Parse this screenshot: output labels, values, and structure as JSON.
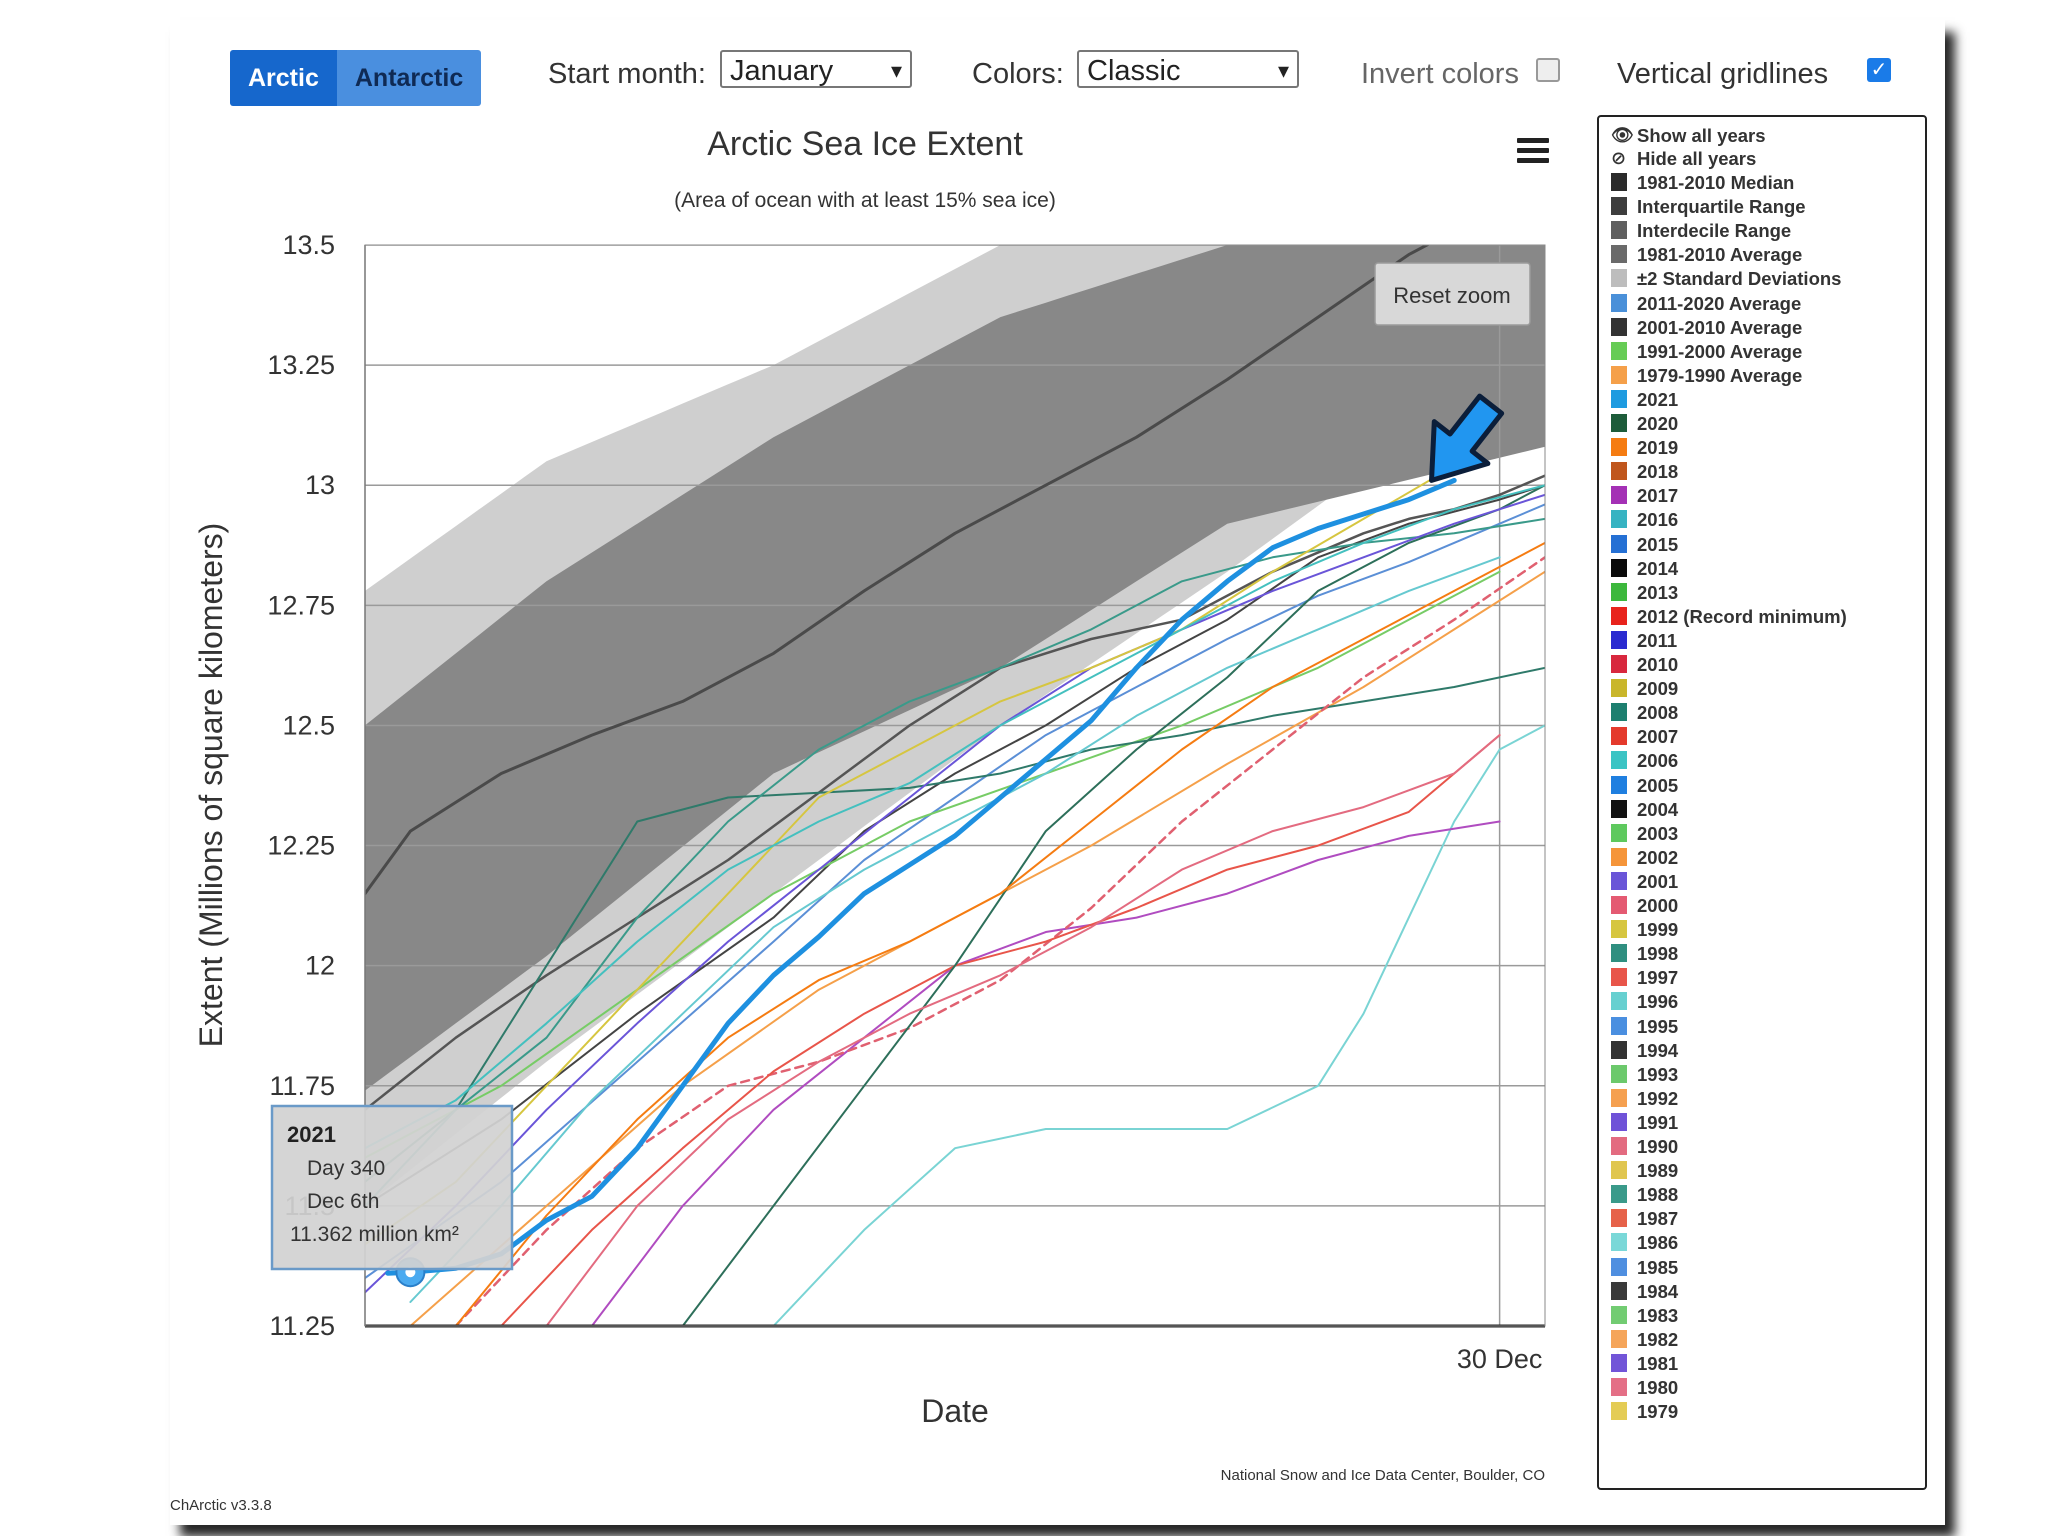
{
  "controls": {
    "region_buttons": [
      "Arctic",
      "Antarctic"
    ],
    "start_month_label": "Start month:",
    "start_month_value": "January",
    "colors_label": "Colors:",
    "colors_value": "Classic",
    "invert_label": "Invert colors",
    "invert_checked": false,
    "gridlines_label": "Vertical gridlines",
    "gridlines_checked": true
  },
  "footer": {
    "version": "ChArctic v3.3.8",
    "credit": "National Snow and Ice Data Center, Boulder, CO"
  },
  "reset_zoom": "Reset zoom",
  "tooltip": {
    "title": "2021",
    "line1": "Day 340",
    "line2": "Dec 6th",
    "line3": "11.362 million km²"
  },
  "legend": {
    "show_all": "Show all years",
    "hide_all": "Hide all years",
    "items": [
      {
        "label": "1981-2010 Median",
        "color": "#2b2b2b"
      },
      {
        "label": "Interquartile Range",
        "color": "#3d3d3d"
      },
      {
        "label": "Interdecile Range",
        "color": "#5f5f5f"
      },
      {
        "label": "1981-2010 Average",
        "color": "#6a6a6a"
      },
      {
        "label": "±2 Standard Deviations",
        "color": "#bdbdbd"
      },
      {
        "label": "2011-2020 Average",
        "color": "#4a90d9"
      },
      {
        "label": "2001-2010 Average",
        "color": "#333333"
      },
      {
        "label": "1991-2000 Average",
        "color": "#66cc55"
      },
      {
        "label": "1979-1990 Average",
        "color": "#f5a04a"
      },
      {
        "label": "2021",
        "color": "#1e9be0"
      },
      {
        "label": "2020",
        "color": "#1d5c3a"
      },
      {
        "label": "2019",
        "color": "#f57c12"
      },
      {
        "label": "2018",
        "color": "#c0561d"
      },
      {
        "label": "2017",
        "color": "#a431b5"
      },
      {
        "label": "2016",
        "color": "#36b3c2"
      },
      {
        "label": "2015",
        "color": "#2570d4"
      },
      {
        "label": "2014",
        "color": "#0a0a0a"
      },
      {
        "label": "2013",
        "color": "#3cb83c"
      },
      {
        "label": "2012 (Record minimum)",
        "color": "#e8231c"
      },
      {
        "label": "2011",
        "color": "#2a2ad0"
      },
      {
        "label": "2010",
        "color": "#d8283e"
      },
      {
        "label": "2009",
        "color": "#c9b62b"
      },
      {
        "label": "2008",
        "color": "#1d7f6f"
      },
      {
        "label": "2007",
        "color": "#e43a2c"
      },
      {
        "label": "2006",
        "color": "#3bc4c4"
      },
      {
        "label": "2005",
        "color": "#1f7fe0"
      },
      {
        "label": "2004",
        "color": "#111111"
      },
      {
        "label": "2003",
        "color": "#5ec95e"
      },
      {
        "label": "2002",
        "color": "#f5953a"
      },
      {
        "label": "2001",
        "color": "#6a55d8"
      },
      {
        "label": "2000",
        "color": "#e45a72"
      },
      {
        "label": "1999",
        "color": "#d6c640"
      },
      {
        "label": "1998",
        "color": "#2f8f80"
      },
      {
        "label": "1997",
        "color": "#e8554a"
      },
      {
        "label": "1996",
        "color": "#66d0d0"
      },
      {
        "label": "1995",
        "color": "#4a8fe0"
      },
      {
        "label": "1994",
        "color": "#333333"
      },
      {
        "label": "1993",
        "color": "#6cc96c"
      },
      {
        "label": "1992",
        "color": "#f5a050"
      },
      {
        "label": "1991",
        "color": "#6f52d8"
      },
      {
        "label": "1990",
        "color": "#e36b80"
      },
      {
        "label": "1989",
        "color": "#e0c650"
      },
      {
        "label": "1988",
        "color": "#3a9a8a"
      },
      {
        "label": "1987",
        "color": "#e6624a"
      },
      {
        "label": "1986",
        "color": "#7ad8d8"
      },
      {
        "label": "1985",
        "color": "#4f8fe0"
      },
      {
        "label": "1984",
        "color": "#3a3a3a"
      },
      {
        "label": "1983",
        "color": "#72cc72"
      },
      {
        "label": "1982",
        "color": "#f5a55a"
      },
      {
        "label": "1981",
        "color": "#7255d8"
      },
      {
        "label": "1980",
        "color": "#e46f86"
      },
      {
        "label": "1979",
        "color": "#e4cc55"
      }
    ]
  },
  "chart_data": {
    "type": "line",
    "title": "Arctic Sea Ice Extent",
    "subtitle": "(Area of ocean with at least 15% sea ice)",
    "xlabel": "Date",
    "ylabel": "Extent (Millions of square kilometers)",
    "x_tick_labels": [
      "30 Dec"
    ],
    "y_tick_labels": [
      "11.25",
      "11.5",
      "11.75",
      "12",
      "12.25",
      "12.5",
      "12.75",
      "13",
      "13.25",
      "13.5"
    ],
    "xlim": [
      339,
      365
    ],
    "ylim": [
      11.25,
      13.5
    ],
    "y_ticks": [
      11.25,
      11.5,
      11.75,
      12,
      12.25,
      12.5,
      12.75,
      13,
      13.25,
      13.5
    ],
    "x_ticks": [
      364
    ],
    "vertical_gridlines": true,
    "legend_position": "right",
    "bands": [
      {
        "name": "±2 Standard Deviations",
        "color": "#cfcfcf",
        "x": [
          339,
          343,
          348,
          353,
          358,
          365
        ],
        "lower": [
          11.5,
          11.8,
          12.15,
          12.5,
          12.82,
          13.3
        ],
        "upper": [
          12.78,
          13.05,
          13.25,
          13.5,
          13.65,
          13.9
        ]
      },
      {
        "name": "Interdecile Range",
        "color": "#888888",
        "x": [
          339,
          343,
          348,
          353,
          358,
          365
        ],
        "lower": [
          11.74,
          12.02,
          12.4,
          12.62,
          12.92,
          13.08
        ],
        "upper": [
          12.5,
          12.8,
          13.1,
          13.35,
          13.5,
          13.65
        ]
      }
    ],
    "series": [
      {
        "name": "1981-2010 Median",
        "color": "#4a4a4a",
        "width": 3,
        "x": [
          339,
          340,
          342,
          344,
          346,
          348,
          350,
          352,
          354,
          356,
          358,
          360,
          362,
          363,
          364,
          365
        ],
        "y": [
          12.15,
          12.28,
          12.4,
          12.48,
          12.55,
          12.65,
          12.78,
          12.9,
          13.0,
          13.1,
          13.22,
          13.35,
          13.48,
          13.53,
          13.57,
          13.62
        ]
      },
      {
        "name": "1981-2010 Average",
        "color": "#555555",
        "width": 2.5,
        "x": [
          339,
          341,
          343,
          345,
          347,
          349,
          351,
          353,
          355,
          357,
          359,
          361,
          362,
          363,
          364,
          365
        ],
        "y": [
          11.7,
          11.85,
          11.98,
          12.1,
          12.22,
          12.36,
          12.5,
          12.62,
          12.68,
          12.72,
          12.82,
          12.9,
          12.93,
          12.95,
          12.98,
          13.02
        ]
      },
      {
        "name": "2001-2010 Average",
        "color": "#444444",
        "width": 2,
        "x": [
          339,
          342,
          345,
          348,
          350,
          352,
          354,
          356,
          358,
          360,
          362,
          364,
          365
        ],
        "y": [
          11.5,
          11.68,
          11.9,
          12.1,
          12.28,
          12.4,
          12.5,
          12.62,
          12.72,
          12.85,
          12.92,
          12.97,
          13.0
        ]
      },
      {
        "name": "2011-2020 Average",
        "color": "#5b8fd6",
        "width": 2,
        "x": [
          339,
          342,
          345,
          348,
          350,
          352,
          354,
          356,
          358,
          360,
          362,
          364,
          365
        ],
        "y": [
          11.35,
          11.55,
          11.8,
          12.05,
          12.22,
          12.35,
          12.48,
          12.58,
          12.68,
          12.77,
          12.84,
          12.92,
          12.96
        ]
      },
      {
        "name": "1991-2000 Average",
        "color": "#77cc66",
        "width": 2,
        "x": [
          339,
          342,
          345,
          348,
          351,
          354,
          357,
          360,
          362,
          364
        ],
        "y": [
          11.6,
          11.75,
          11.95,
          12.15,
          12.3,
          12.4,
          12.5,
          12.62,
          12.72,
          12.82
        ]
      },
      {
        "name": "1979-1990 Average",
        "color": "#f5a04a",
        "width": 2,
        "x": [
          340,
          343,
          346,
          349,
          352,
          355,
          358,
          361,
          363,
          365
        ],
        "y": [
          11.25,
          11.5,
          11.75,
          11.95,
          12.1,
          12.25,
          12.42,
          12.58,
          12.7,
          12.82
        ]
      },
      {
        "name": "2021",
        "color": "#1e90e0",
        "width": 5,
        "x": [
          339.5,
          340,
          341,
          342,
          343,
          344,
          345,
          346,
          347,
          348,
          349,
          350,
          351,
          352,
          353,
          354,
          355,
          356,
          357,
          358,
          359,
          360,
          361,
          362,
          363
        ],
        "y": [
          11.36,
          11.362,
          11.37,
          11.4,
          11.47,
          11.52,
          11.62,
          11.75,
          11.88,
          11.98,
          12.06,
          12.15,
          12.21,
          12.27,
          12.35,
          12.43,
          12.51,
          12.62,
          12.72,
          12.8,
          12.87,
          12.91,
          12.94,
          12.97,
          13.01
        ]
      },
      {
        "name": "2020",
        "color": "#2f7a6a",
        "width": 2,
        "x": [
          339,
          341,
          343,
          345,
          347,
          349,
          351,
          353,
          355,
          357,
          359,
          361,
          363,
          365
        ],
        "y": [
          11.55,
          11.7,
          12.0,
          12.3,
          12.35,
          12.36,
          12.37,
          12.4,
          12.45,
          12.48,
          12.52,
          12.55,
          12.58,
          12.62
        ]
      },
      {
        "name": "2016",
        "color": "#7ad4d4",
        "width": 2,
        "x": [
          348,
          350,
          352,
          354,
          356,
          358,
          360,
          361,
          362,
          363,
          364,
          365
        ],
        "y": [
          11.25,
          11.45,
          11.62,
          11.66,
          11.66,
          11.66,
          11.75,
          11.9,
          12.1,
          12.3,
          12.45,
          12.5
        ]
      },
      {
        "name": "2017",
        "color": "#b04cc0",
        "width": 2,
        "x": [
          344,
          346,
          348,
          350,
          352,
          354,
          356,
          358,
          360,
          362,
          364
        ],
        "y": [
          11.25,
          11.5,
          11.7,
          11.85,
          12.0,
          12.07,
          12.1,
          12.15,
          12.22,
          12.27,
          12.3
        ]
      },
      {
        "name": "2012 (Record minimum)",
        "color": "#e06070",
        "width": 2.5,
        "dash": "8,6",
        "x": [
          341,
          343,
          345,
          347,
          349,
          351,
          353,
          355,
          357,
          359,
          361,
          363,
          365
        ],
        "y": [
          11.25,
          11.45,
          11.62,
          11.75,
          11.8,
          11.87,
          11.97,
          12.12,
          12.3,
          12.45,
          12.6,
          12.72,
          12.85
        ]
      },
      {
        "name": "2008",
        "color": "#3a9a8a",
        "width": 2,
        "x": [
          339,
          341,
          343,
          345,
          347,
          349,
          351,
          353,
          355,
          357,
          359,
          361,
          363,
          365
        ],
        "y": [
          11.5,
          11.7,
          11.85,
          12.1,
          12.3,
          12.45,
          12.55,
          12.62,
          12.7,
          12.8,
          12.85,
          12.88,
          12.9,
          12.93
        ]
      },
      {
        "name": "2007",
        "color": "#e8554a",
        "width": 2,
        "x": [
          342,
          344,
          346,
          348,
          350,
          352,
          354,
          356,
          358,
          360,
          362,
          364
        ],
        "y": [
          11.25,
          11.45,
          11.62,
          11.78,
          11.9,
          12.0,
          12.05,
          12.12,
          12.2,
          12.25,
          12.32,
          12.48
        ]
      },
      {
        "name": "2006",
        "color": "#2d6f5a",
        "width": 2,
        "x": [
          346,
          348,
          350,
          352,
          354,
          356,
          358,
          360,
          362,
          364,
          365
        ],
        "y": [
          11.25,
          11.5,
          11.75,
          12.0,
          12.28,
          12.45,
          12.6,
          12.78,
          12.88,
          12.95,
          13.0
        ]
      },
      {
        "name": "2013",
        "color": "#66c9d0",
        "width": 2,
        "x": [
          340,
          342,
          344,
          346,
          348,
          350,
          352,
          354,
          356,
          358,
          360,
          362,
          364
        ],
        "y": [
          11.3,
          11.5,
          11.72,
          11.9,
          12.08,
          12.2,
          12.3,
          12.4,
          12.52,
          12.62,
          12.7,
          12.78,
          12.85
        ]
      },
      {
        "name": "2001",
        "color": "#6a55d8",
        "width": 2,
        "x": [
          339,
          341,
          343,
          345,
          347,
          349,
          351,
          353,
          355,
          357,
          359,
          361,
          363,
          365
        ],
        "y": [
          11.32,
          11.5,
          11.7,
          11.88,
          12.05,
          12.2,
          12.35,
          12.5,
          12.62,
          12.7,
          12.78,
          12.85,
          12.92,
          12.98
        ]
      },
      {
        "name": "1999",
        "color": "#d6c640",
        "width": 2,
        "x": [
          339,
          341,
          343,
          345,
          347,
          349,
          351,
          353,
          355,
          357,
          359,
          361,
          363
        ],
        "y": [
          11.42,
          11.55,
          11.75,
          11.95,
          12.15,
          12.35,
          12.45,
          12.55,
          12.62,
          12.7,
          12.82,
          12.93,
          13.04
        ]
      },
      {
        "name": "2019",
        "color": "#f57c12",
        "width": 2,
        "x": [
          341,
          343,
          345,
          347,
          349,
          351,
          353,
          355,
          357,
          359,
          361,
          363,
          365
        ],
        "y": [
          11.25,
          11.48,
          11.68,
          11.85,
          11.97,
          12.05,
          12.15,
          12.3,
          12.45,
          12.58,
          12.68,
          12.78,
          12.88
        ]
      },
      {
        "name": "1990",
        "color": "#e36b80",
        "width": 2,
        "x": [
          343,
          345,
          347,
          349,
          351,
          353,
          355,
          357,
          359,
          361,
          363,
          364
        ],
        "y": [
          11.25,
          11.5,
          11.68,
          11.8,
          11.9,
          11.98,
          12.08,
          12.2,
          12.28,
          12.33,
          12.4,
          12.48
        ]
      },
      {
        "name": "1986",
        "color": "#44c0bf",
        "width": 2,
        "x": [
          339,
          341,
          343,
          345,
          347,
          349,
          351,
          353,
          355,
          357,
          359,
          361,
          363,
          365
        ],
        "y": [
          11.62,
          11.72,
          11.88,
          12.05,
          12.2,
          12.3,
          12.38,
          12.5,
          12.6,
          12.7,
          12.8,
          12.88,
          12.95,
          13.0
        ]
      }
    ],
    "annotation_point": {
      "x": 340,
      "y": 11.362
    },
    "arrow_target": {
      "x": 362.5,
      "y": 13.01
    }
  }
}
